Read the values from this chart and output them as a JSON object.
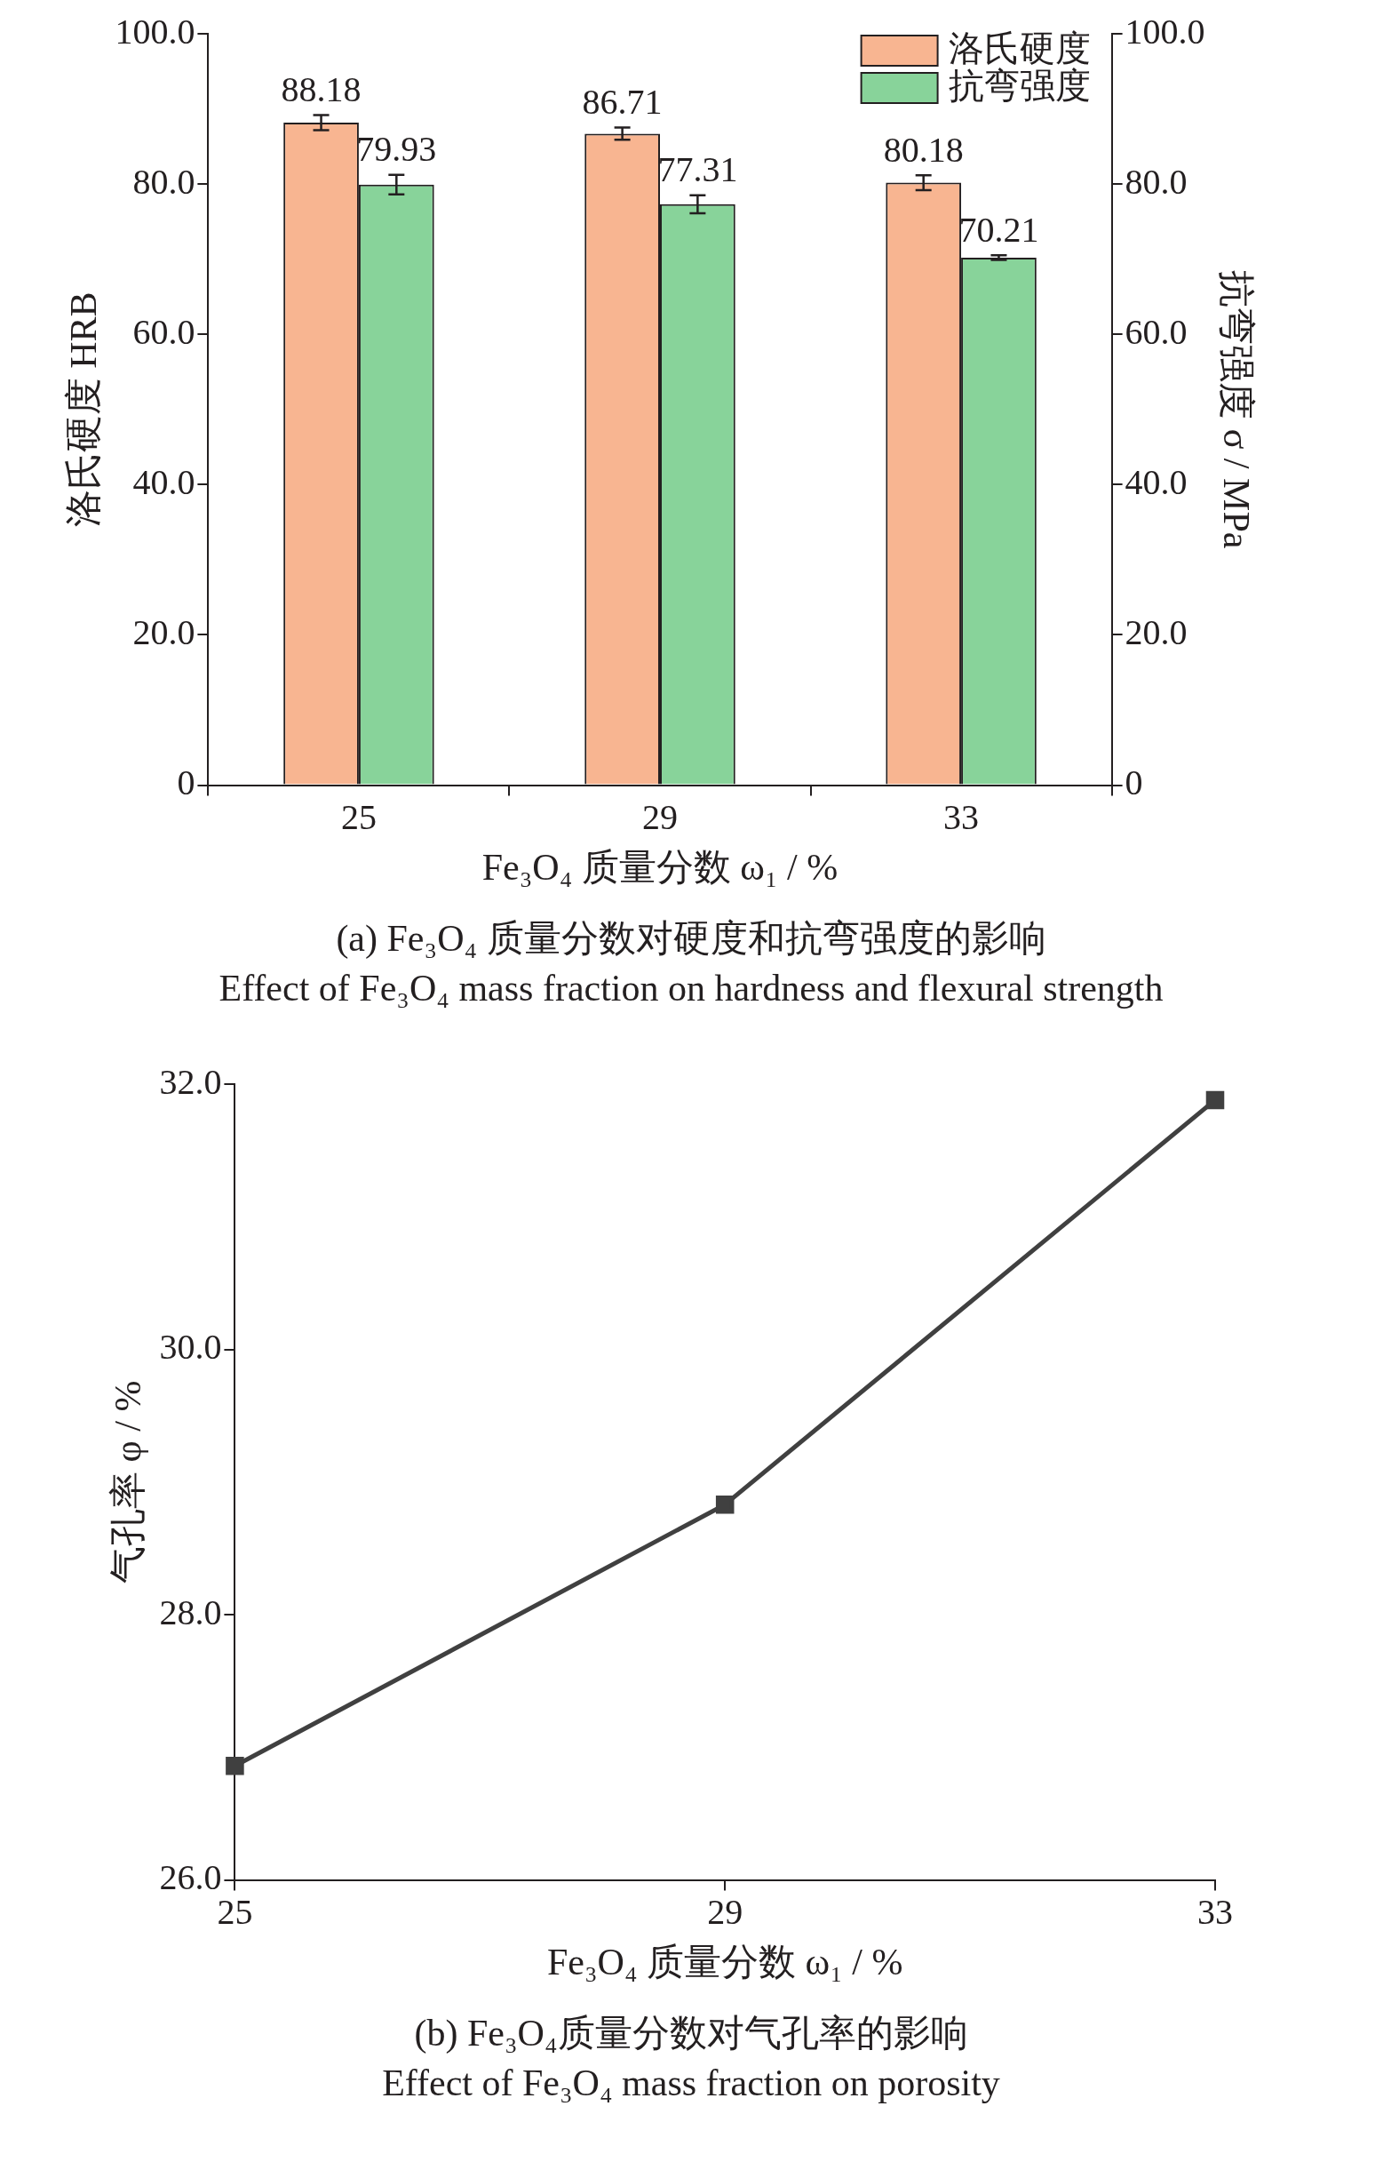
{
  "chart_data": [
    {
      "type": "bar",
      "xlabel": "Fe₃O₄ 质量分数 ω₁ / %",
      "ylabel": "洛氏硬度 HRB",
      "y2label": "抗弯强度 σ / MPa",
      "categories": [
        "25",
        "29",
        "33"
      ],
      "series": [
        {
          "name": "洛氏硬度",
          "color": "#f8b591",
          "values": [
            88.18,
            86.71,
            80.18
          ],
          "errors": [
            1,
            0.8,
            1
          ]
        },
        {
          "name": "抗弯强度",
          "color": "#88d39a",
          "values": [
            79.93,
            77.31,
            70.21
          ],
          "errors": [
            1.3,
            1.2,
            0.3
          ],
          "axis": "y2"
        }
      ],
      "ylim": [
        0,
        100
      ],
      "yticks": [
        0,
        {
          "value": 20,
          "label": "20.0"
        },
        {
          "value": 40,
          "label": "40.0"
        },
        {
          "value": 60,
          "label": "60.0"
        },
        {
          "value": 80,
          "label": "80.0"
        },
        {
          "value": 100,
          "label": "100.0"
        }
      ],
      "y2lim": [
        0,
        100
      ],
      "y2ticks": [
        0,
        {
          "value": 20,
          "label": "20.0"
        },
        {
          "value": 40,
          "label": "40.0"
        },
        {
          "value": 60,
          "label": "60.0"
        },
        {
          "value": 80,
          "label": "80.0"
        },
        {
          "value": 100,
          "label": "100.0"
        }
      ],
      "data_labels": true,
      "legend": "top right",
      "grid": false,
      "annotations": [
        "(a) Fe₃O₄ 质量分数对硬度和抗弯强度的影响",
        "Effect of Fe₃O₄ mass fraction on hardness and flexural strength"
      ]
    },
    {
      "type": "line",
      "xlabel": "Fe₃O₄ 质量分数 ω₁ / %",
      "ylabel": "气孔率 φ / %",
      "x": [
        25,
        29,
        33
      ],
      "series": [
        {
          "color": "#404040",
          "values": [
            26.86,
            28.83,
            31.88
          ]
        }
      ],
      "xlim": [
        25,
        33
      ],
      "xticks": [
        25,
        29,
        33
      ],
      "ylim": [
        26,
        32
      ],
      "yticks": [
        {
          "value": 26,
          "label": "26.0"
        },
        {
          "value": 28,
          "label": "28.0"
        },
        {
          "value": 30,
          "label": "30.0"
        },
        {
          "value": 32,
          "label": "32.0"
        }
      ],
      "marker": "square",
      "line_style": "solid",
      "grid": false,
      "legend": false,
      "annotations": [
        "(b) Fe₃O₄质量分数对气孔率的影响",
        "Effect of Fe₃O₄ mass fraction on porosity"
      ]
    }
  ]
}
